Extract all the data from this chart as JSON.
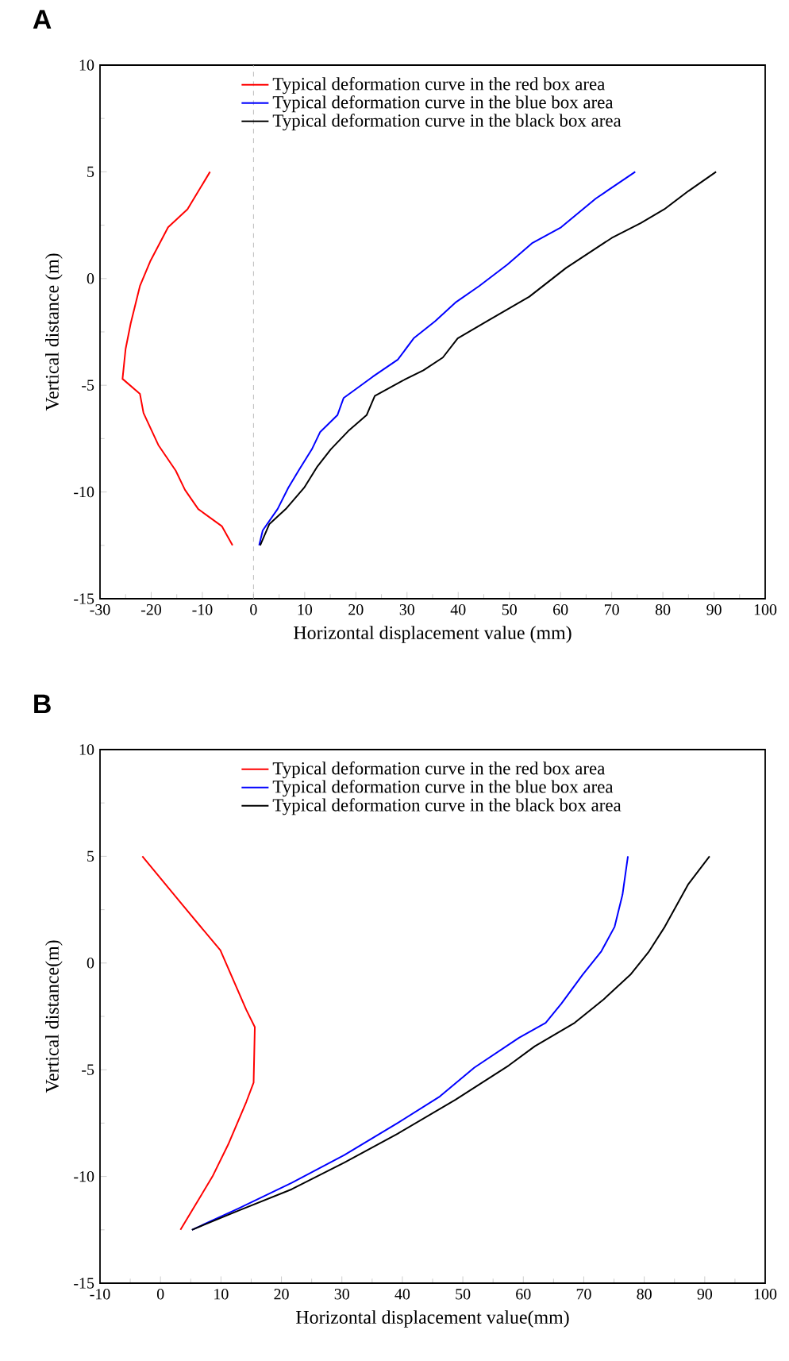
{
  "chart_data": [
    {
      "type": "line",
      "title": "A",
      "xlabel": "Horizontal displacement value (mm)",
      "ylabel": "Vertical distance (m)",
      "xlim": [
        -30,
        100
      ],
      "ylim": [
        -15,
        10
      ],
      "xticks": [
        -30,
        -20,
        -10,
        0,
        10,
        20,
        30,
        40,
        50,
        60,
        70,
        80,
        90,
        100
      ],
      "yticks": [
        -15,
        -10,
        -5,
        0,
        5,
        10
      ],
      "legend": "top",
      "marker": "none",
      "line_style": "solid",
      "ref_lines": [
        {
          "axis": "x",
          "value": 0,
          "color": "#aaaaaa",
          "line_style": "dashed"
        }
      ],
      "series": [
        {
          "name": "Typical deformation curve in the red box area",
          "color": "#ff0000",
          "x": [
            -8.5,
            -12.9,
            -16.7,
            -20.2,
            -22.2,
            -24.0,
            -25.0,
            -25.6,
            -22.2,
            -21.5,
            -18.6,
            -15.2,
            -13.4,
            -10.8,
            -6.2,
            -4.1
          ],
          "values": [
            5,
            3.25,
            2.4,
            0.8,
            -0.35,
            -2.1,
            -3.3,
            -4.7,
            -5.4,
            -6.3,
            -7.8,
            -9.0,
            -9.9,
            -10.8,
            -11.6,
            -12.5
          ]
        },
        {
          "name": "Typical deformation curve in the blue box area",
          "color": "#0000ff",
          "x": [
            1.1,
            1.8,
            4.7,
            6.8,
            8.8,
            11.4,
            13.0,
            16.4,
            17.6,
            19.9,
            23.3,
            28.2,
            31.3,
            35.5,
            39.6,
            44.1,
            49.6,
            54.4,
            60.1,
            66.9,
            74.6
          ],
          "values": [
            -12.5,
            -11.8,
            -10.8,
            -9.8,
            -9.0,
            -8.0,
            -7.2,
            -6.4,
            -5.6,
            -5.2,
            -4.6,
            -3.8,
            -2.8,
            -2.0,
            -1.1,
            -0.35,
            0.65,
            1.65,
            2.4,
            3.75,
            5
          ]
        },
        {
          "name": "Typical deformation curve in the black box area",
          "color": "#000000",
          "x": [
            1.3,
            3.1,
            6.3,
            9.9,
            12.5,
            15.1,
            18.7,
            22.1,
            23.7,
            29.0,
            33.2,
            37.0,
            39.9,
            45.6,
            53.9,
            61.1,
            70.0,
            75.7,
            80.3,
            85.0,
            90.4
          ],
          "values": [
            -12.5,
            -11.5,
            -10.8,
            -9.8,
            -8.8,
            -8.0,
            -7.1,
            -6.4,
            -5.5,
            -4.8,
            -4.3,
            -3.7,
            -2.8,
            -2.0,
            -0.85,
            0.5,
            1.9,
            2.6,
            3.25,
            4.1,
            5
          ]
        }
      ]
    },
    {
      "type": "line",
      "title": "B",
      "xlabel": "Horizontal displacement value(mm)",
      "ylabel": "Vertical distance(m)",
      "xlim": [
        -10,
        100
      ],
      "ylim": [
        -15,
        10
      ],
      "xticks": [
        -10,
        0,
        10,
        20,
        30,
        40,
        50,
        60,
        70,
        80,
        90,
        100
      ],
      "yticks": [
        -15,
        -10,
        -5,
        0,
        5,
        10
      ],
      "legend": "top",
      "marker": "none",
      "line_style": "solid",
      "series": [
        {
          "name": "Typical deformation curve in the red box area",
          "color": "#ff0000",
          "x": [
            -3.0,
            3.7,
            9.9,
            14.2,
            15.6,
            15.4,
            14.2,
            11.2,
            8.6,
            3.3
          ],
          "values": [
            5,
            2.7,
            0.6,
            -2.2,
            -3.0,
            -5.6,
            -6.5,
            -8.5,
            -10.0,
            -12.5
          ]
        },
        {
          "name": "Typical deformation curve in the blue box area",
          "color": "#0000ff",
          "x": [
            5.2,
            12.9,
            21.7,
            30.4,
            39.2,
            46.2,
            51.9,
            59.3,
            63.7,
            66.3,
            69.8,
            72.9,
            75.1,
            76.4,
            77.3
          ],
          "values": [
            -12.5,
            -11.5,
            -10.3,
            -9.0,
            -7.5,
            -6.25,
            -4.9,
            -3.5,
            -2.8,
            -1.9,
            -0.55,
            0.55,
            1.7,
            3.2,
            5
          ]
        },
        {
          "name": "Typical deformation curve in the black box area",
          "color": "#000000",
          "x": [
            5.2,
            12.9,
            21.7,
            30.4,
            39.2,
            48.8,
            57.6,
            61.9,
            68.5,
            73.3,
            77.7,
            80.8,
            83.4,
            87.3,
            90.8
          ],
          "values": [
            -12.5,
            -11.6,
            -10.6,
            -9.35,
            -8.0,
            -6.4,
            -4.8,
            -3.9,
            -2.8,
            -1.7,
            -0.55,
            0.55,
            1.7,
            3.7,
            5
          ]
        }
      ]
    }
  ]
}
